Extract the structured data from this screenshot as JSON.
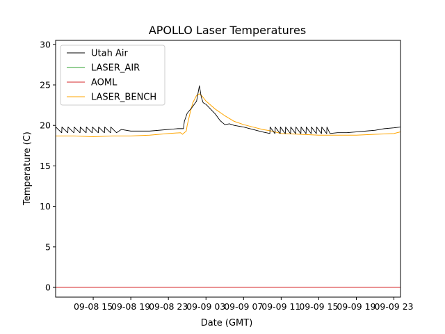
{
  "chart_data": {
    "type": "line",
    "title": "APOLLO Laser Temperatures",
    "xlabel": "Date (GMT)",
    "ylabel": "Temperature (C)",
    "x_unit": "hours since 09-08 11:00 GMT",
    "xlim": [
      0,
      36.7
    ],
    "ylim": [
      -1.2,
      30.5
    ],
    "yticks": [
      0,
      5,
      10,
      15,
      20,
      25,
      30
    ],
    "ytick_labels": [
      "0",
      "5",
      "10",
      "15",
      "20",
      "25",
      "30"
    ],
    "xticks": [
      4,
      8,
      12,
      16,
      20,
      24,
      28,
      32,
      36
    ],
    "xtick_labels": [
      "09-08 15",
      "09-08 19",
      "09-08 23",
      "09-09 03",
      "09-09 07",
      "09-09 11",
      "09-09 15",
      "09-09 19",
      "09-09 23"
    ],
    "legend_position": "upper-left",
    "series": [
      {
        "name": "Utah Air",
        "color": "#000000",
        "sawtooth": [
          {
            "start": 0,
            "end": 6.5,
            "period": 0.65,
            "low": 19.1,
            "high": 19.8
          },
          {
            "start": 22.8,
            "end": 29.2,
            "period": 0.55,
            "low": 19.0,
            "high": 19.8
          }
        ],
        "x": [
          0,
          6.5,
          7.0,
          8.0,
          10.0,
          13.0,
          13.6,
          13.7,
          14.0,
          14.5,
          15.0,
          15.3,
          15.5,
          15.7,
          16.0,
          16.5,
          17.0,
          17.5,
          18.0,
          18.5,
          19.0,
          20.0,
          21.0,
          22.0,
          22.8,
          29.2,
          30.0,
          31.0,
          32.0,
          33.0,
          34.0,
          35.0,
          36.0,
          36.7
        ],
        "y": [
          19.5,
          19.2,
          19.5,
          19.3,
          19.3,
          19.6,
          19.6,
          20.5,
          21.5,
          22.2,
          23.0,
          24.9,
          23.5,
          22.8,
          22.6,
          22.0,
          21.4,
          20.6,
          20.1,
          20.2,
          20.0,
          19.8,
          19.5,
          19.2,
          19.0,
          19.2,
          19.1,
          19.1,
          19.2,
          19.3,
          19.4,
          19.6,
          19.7,
          19.8
        ]
      },
      {
        "name": "LASER_AIR",
        "color": "#2ca02c",
        "x": [],
        "y": []
      },
      {
        "name": "AOML",
        "color": "#d62728",
        "x": [
          0,
          36.7
        ],
        "y": [
          0,
          0
        ]
      },
      {
        "name": "LASER_BENCH",
        "color": "#ffa500",
        "x": [
          0,
          2,
          4,
          6,
          8,
          10,
          12,
          13.3,
          13.5,
          13.9,
          14.0,
          14.3,
          14.6,
          15.0,
          15.3,
          15.6,
          16.0,
          17.0,
          18.0,
          19.0,
          20.0,
          21.0,
          22.0,
          23.0,
          24.0,
          26.0,
          28.0,
          30.0,
          32.0,
          34.0,
          36.0,
          36.7
        ],
        "y": [
          18.7,
          18.7,
          18.6,
          18.7,
          18.7,
          18.8,
          19.0,
          19.1,
          18.9,
          19.3,
          20.0,
          21.5,
          22.8,
          23.7,
          23.9,
          23.6,
          23.0,
          22.0,
          21.2,
          20.5,
          20.1,
          19.8,
          19.5,
          19.3,
          19.0,
          18.9,
          18.8,
          18.8,
          18.8,
          18.9,
          19.0,
          19.2
        ]
      }
    ]
  }
}
